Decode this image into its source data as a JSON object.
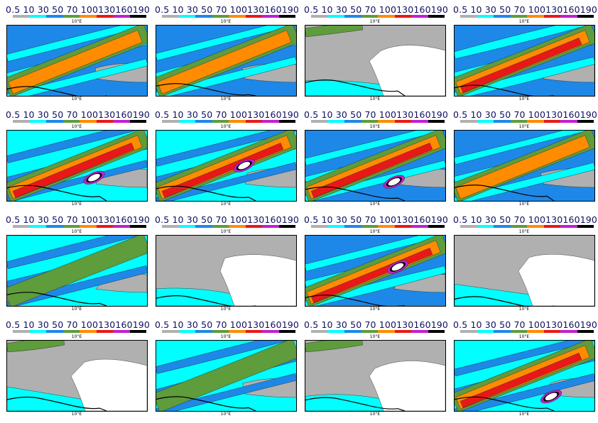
{
  "colorbar": {
    "labels": "0.5 10  30  50  70 100130160190",
    "colors": [
      "#b0b0b0",
      "#00ffff",
      "#1e88e8",
      "#5e9c3c",
      "#ff8c00",
      "#e81818",
      "#c020d0",
      "#000000"
    ]
  },
  "axis": {
    "lon_label": "10°E"
  },
  "land_colors": {
    "low": "#b0b0b0",
    "none": "#ffffff"
  },
  "panels": [
    {
      "id": 1
    },
    {
      "id": 2
    },
    {
      "id": 3
    },
    {
      "id": 4
    },
    {
      "id": 5
    },
    {
      "id": 6
    },
    {
      "id": 7
    },
    {
      "id": 8
    },
    {
      "id": 9
    },
    {
      "id": 10
    },
    {
      "id": 11
    },
    {
      "id": 12
    },
    {
      "id": 13
    },
    {
      "id": 14
    },
    {
      "id": 15
    },
    {
      "id": 16
    }
  ]
}
